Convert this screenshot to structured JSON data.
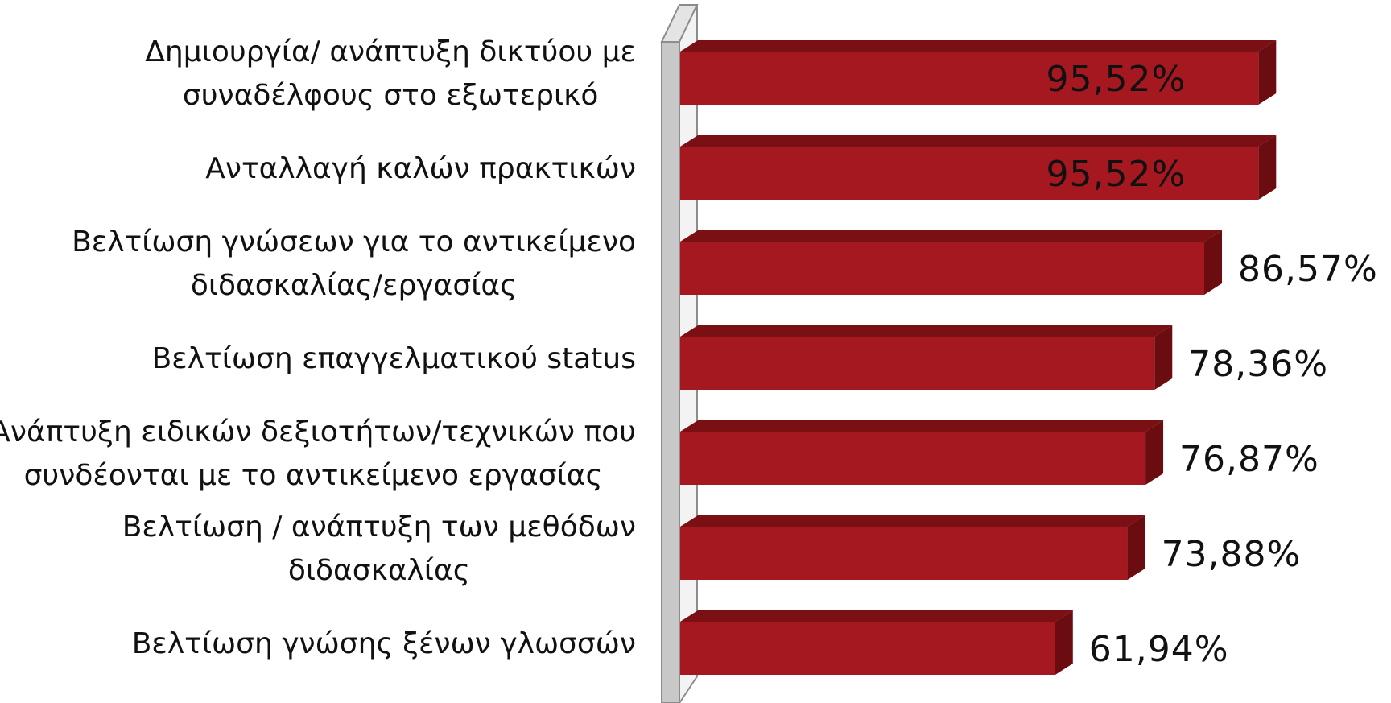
{
  "colors": {
    "bar_front": "#a51820",
    "bar_top": "#7a0f14",
    "bar_side": "#6a0c10",
    "wall_front": "#ffffff",
    "wall_side": "#c8c8c8",
    "wall_edge": "#8c8c8c",
    "text": "#111111"
  },
  "chart_data": {
    "type": "bar",
    "orientation": "horizontal",
    "title": "",
    "xlabel": "",
    "ylabel": "",
    "xlim": [
      0,
      100
    ],
    "grid": false,
    "legend": "none",
    "categories": [
      {
        "lines": [
          "Δημιουργία/ ανάπτυξη δικτύου  με",
          "συναδέλφους στο εξωτερικό"
        ]
      },
      {
        "lines": [
          "Ανταλλαγή καλών πρακτικών"
        ]
      },
      {
        "lines": [
          "Βελτίωση γνώσεων για το αντικείμενο",
          "διδασκαλίας/εργασίας"
        ]
      },
      {
        "lines": [
          "Βελτίωση επαγγελματικού status"
        ]
      },
      {
        "lines": [
          "Ανάπτυξη ειδικών δεξιοτήτων/τεχνικών  που",
          "συνδέονται με το αντικείμενο εργασίας"
        ]
      },
      {
        "lines": [
          "Βελτίωση / ανάπτυξη των μεθόδων",
          "διδασκαλίας"
        ]
      },
      {
        "lines": [
          "Βελτίωση γνώσης ξένων γλωσσών"
        ]
      }
    ],
    "values": [
      95.52,
      95.52,
      86.57,
      78.36,
      76.87,
      73.88,
      61.94
    ],
    "value_labels": [
      "95,52%",
      "95,52%",
      "86,57%",
      "78,36%",
      "76,87%",
      "73,88%",
      "61,94%"
    ]
  }
}
